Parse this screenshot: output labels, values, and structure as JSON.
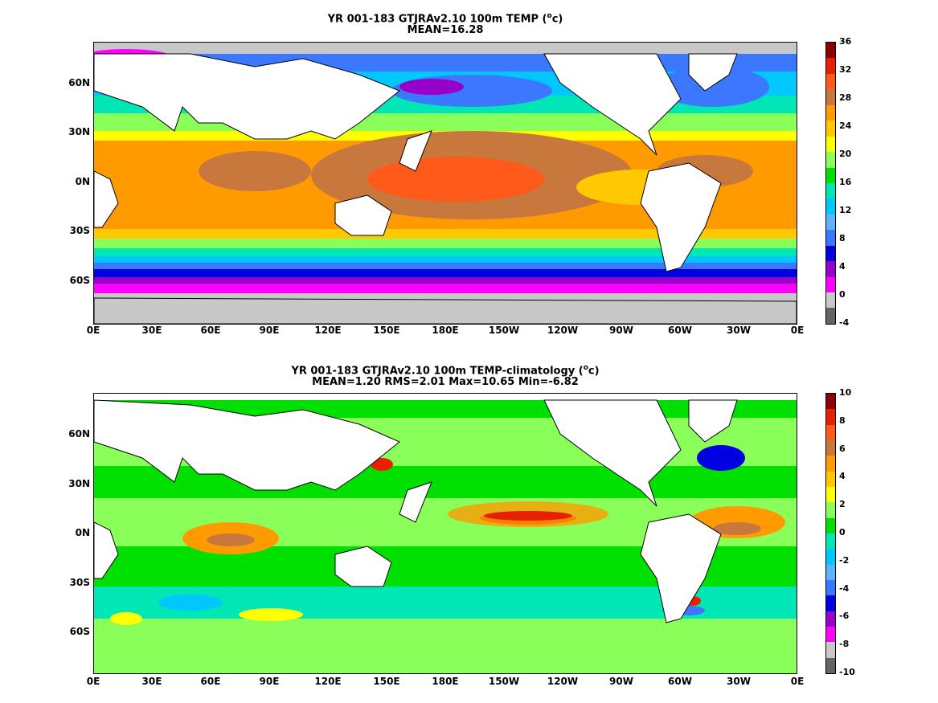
{
  "top": {
    "title_main": "YR 001-183 GTJRAv2.10 100m TEMP (",
    "title_unit_sup": "o",
    "title_unit_rest": "c)",
    "subtitle": "MEAN=16.28",
    "lat_labels": [
      "60N",
      "30N",
      "0N",
      "30S",
      "60S"
    ],
    "lon_labels": [
      "0E",
      "30E",
      "60E",
      "90E",
      "120E",
      "150E",
      "180E",
      "150W",
      "120W",
      "90W",
      "60W",
      "30W",
      "0E"
    ],
    "colorbar_labels": [
      "36",
      "32",
      "28",
      "24",
      "20",
      "16",
      "12",
      "8",
      "4",
      "0",
      "-4"
    ],
    "colorbar_colors": [
      "#8b0000",
      "#e62000",
      "#ff5a1a",
      "#c8783c",
      "#ff9b00",
      "#ffc800",
      "#ffff00",
      "#8aff5a",
      "#00e000",
      "#00e6b4",
      "#00c8ff",
      "#5ab4ff",
      "#3c78ff",
      "#0000e0",
      "#9600c8",
      "#ff00ff",
      "#c8c8c8",
      "#646464"
    ]
  },
  "bottom": {
    "title_main": "YR 001-183 GTJRAv2.10 100m TEMP-climatology (",
    "title_unit_sup": "o",
    "title_unit_rest": "c)",
    "subtitle": "MEAN=1.20   RMS=2.01   Max=10.65   Min=-6.82",
    "lat_labels": [
      "60N",
      "30N",
      "0N",
      "30S",
      "60S"
    ],
    "lon_labels": [
      "0E",
      "30E",
      "60E",
      "90E",
      "120E",
      "150E",
      "180E",
      "150W",
      "120W",
      "90W",
      "60W",
      "30W",
      "0E"
    ],
    "colorbar_labels": [
      "10",
      "8",
      "6",
      "4",
      "2",
      "0",
      "-2",
      "-4",
      "-6",
      "-8",
      "-10"
    ],
    "colorbar_colors": [
      "#8b0000",
      "#e62000",
      "#ff5a1a",
      "#c8783c",
      "#ff9b00",
      "#ffc800",
      "#ffff00",
      "#8aff5a",
      "#00e000",
      "#00e6b4",
      "#00c8ff",
      "#5ab4ff",
      "#3c78ff",
      "#0000e0",
      "#9600c8",
      "#ff00ff",
      "#c8c8c8",
      "#646464"
    ]
  }
}
